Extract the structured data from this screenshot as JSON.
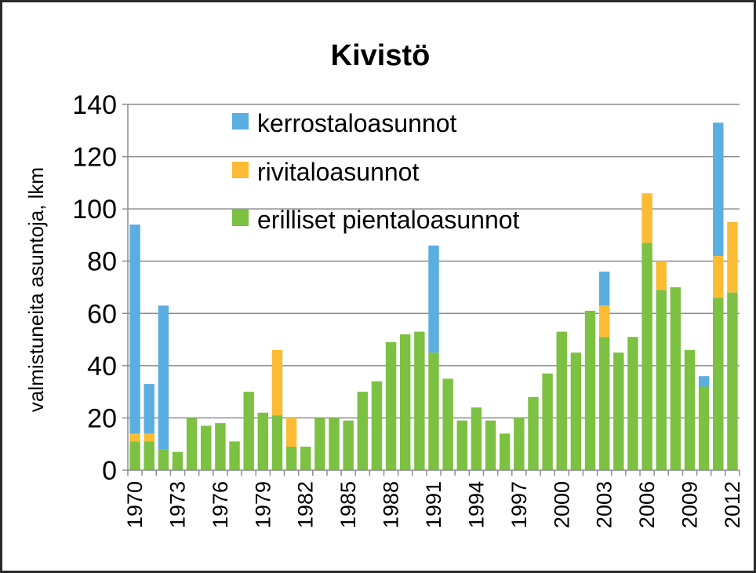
{
  "chart_data": {
    "type": "bar",
    "stacked": true,
    "title": "Kivistö",
    "xlabel": "",
    "ylabel": "valmistuneita asuntoja, lkm",
    "ylim": [
      0,
      140
    ],
    "yticks": [
      0,
      20,
      40,
      60,
      80,
      100,
      120,
      140
    ],
    "grid": true,
    "legend_position": "top-center",
    "categories": [
      "1970",
      "1971",
      "1972",
      "1973",
      "1974",
      "1975",
      "1976",
      "1977",
      "1978",
      "1979",
      "1980",
      "1981",
      "1982",
      "1983",
      "1984",
      "1985",
      "1986",
      "1987",
      "1988",
      "1989",
      "1990",
      "1991",
      "1992",
      "1993",
      "1994",
      "1995",
      "1996",
      "1997",
      "1998",
      "1999",
      "2000",
      "2001",
      "2002",
      "2003",
      "2004",
      "2005",
      "2006",
      "2007",
      "2008",
      "2009",
      "2010",
      "2011",
      "2012"
    ],
    "tick_labels": [
      "1970",
      "",
      "",
      "1973",
      "",
      "",
      "1976",
      "",
      "",
      "1979",
      "",
      "",
      "1982",
      "",
      "",
      "1985",
      "",
      "",
      "1988",
      "",
      "",
      "1991",
      "",
      "",
      "1994",
      "",
      "",
      "1997",
      "",
      "",
      "2000",
      "",
      "",
      "2003",
      "",
      "",
      "2006",
      "",
      "",
      "2009",
      "",
      "",
      "2012"
    ],
    "series": [
      {
        "name": "erilliset pientaloasunnot",
        "color": "#7cc142",
        "values": [
          11,
          11,
          8,
          7,
          20,
          17,
          18,
          11,
          30,
          22,
          21,
          9,
          9,
          20,
          20,
          19,
          30,
          34,
          49,
          52,
          53,
          45,
          35,
          19,
          24,
          19,
          14,
          20,
          28,
          37,
          53,
          45,
          61,
          51,
          45,
          51,
          87,
          69,
          70,
          46,
          32,
          66,
          68
        ]
      },
      {
        "name": "rivitaloasunnot",
        "color": "#fbbc34",
        "values": [
          3,
          3,
          0,
          0,
          0,
          0,
          0,
          0,
          0,
          0,
          25,
          11,
          0,
          0,
          0,
          0,
          0,
          0,
          0,
          0,
          0,
          0,
          0,
          0,
          0,
          0,
          0,
          0,
          0,
          0,
          0,
          0,
          0,
          12,
          0,
          0,
          19,
          11,
          0,
          0,
          0,
          16,
          27
        ]
      },
      {
        "name": "kerrostaloasunnot",
        "color": "#5aaee0",
        "values": [
          80,
          19,
          55,
          0,
          0,
          0,
          0,
          0,
          0,
          0,
          0,
          0,
          0,
          0,
          0,
          0,
          0,
          0,
          0,
          0,
          0,
          41,
          0,
          0,
          0,
          0,
          0,
          0,
          0,
          0,
          0,
          0,
          0,
          13,
          0,
          0,
          0,
          0,
          0,
          0,
          4,
          51,
          0
        ]
      }
    ],
    "legend_order": [
      "kerrostaloasunnot",
      "rivitaloasunnot",
      "erilliset pientaloasunnot"
    ]
  }
}
